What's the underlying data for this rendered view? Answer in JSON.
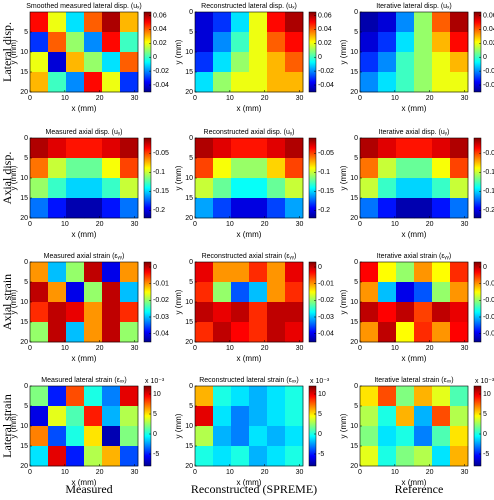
{
  "row_labels": [
    "Lateral disp.",
    "Axial disp.",
    "Axial strain",
    "Lateral strain"
  ],
  "column_labels": [
    "Measured",
    "Reconstructed (SPREME)",
    "Reference"
  ],
  "chart_data": [
    {
      "type": "heatmap",
      "title": "Smoothed measured lateral disp. (uₓ)",
      "xlabel": "x (mm)",
      "ylabel": "y (mm)",
      "xlim": [
        0,
        31
      ],
      "ylim": [
        0,
        20
      ],
      "y_reversed": true,
      "xticks": [
        0,
        10,
        20,
        30
      ],
      "yticks": [
        5,
        10,
        15,
        20
      ],
      "colormap": "jet",
      "clim": [
        -0.05,
        0.065
      ],
      "cticks": [
        0.06,
        0.04,
        0.02,
        0,
        -0.02,
        -0.04
      ],
      "values": [
        [
          0.05,
          0.02,
          -0.01,
          0.04,
          0.06,
          0.03
        ],
        [
          -0.03,
          0.04,
          0.01,
          -0.02,
          0.05,
          0.0
        ],
        [
          0.02,
          -0.04,
          0.03,
          0.01,
          -0.01,
          0.04
        ],
        [
          0.03,
          0.0,
          -0.02,
          0.05,
          0.02,
          -0.03
        ]
      ]
    },
    {
      "type": "heatmap",
      "title": "Reconstructed lateral disp. (uₓ)",
      "xlabel": "x (mm)",
      "ylabel": "y (mm)",
      "xlim": [
        0,
        31
      ],
      "ylim": [
        0,
        20
      ],
      "y_reversed": true,
      "xticks": [
        0,
        10,
        20,
        30
      ],
      "yticks": [
        0,
        5,
        10,
        15,
        20
      ],
      "colormap": "jet",
      "clim": [
        -0.05,
        0.065
      ],
      "cticks": [
        0.06,
        0.04,
        0.02,
        0,
        -0.02,
        -0.04
      ],
      "values": [
        [
          -0.04,
          -0.03,
          -0.01,
          0.02,
          0.05,
          0.06
        ],
        [
          -0.04,
          -0.02,
          0.0,
          0.02,
          0.04,
          0.05
        ],
        [
          -0.03,
          -0.01,
          0.01,
          0.02,
          0.03,
          0.04
        ],
        [
          -0.01,
          0.01,
          0.02,
          0.02,
          0.03,
          0.03
        ]
      ]
    },
    {
      "type": "heatmap",
      "title": "Iterative lateral disp. (uₓ)",
      "xlabel": "x (mm)",
      "ylabel": "y (mm)",
      "xlim": [
        0,
        31
      ],
      "ylim": [
        0,
        20
      ],
      "y_reversed": true,
      "xticks": [
        0,
        10,
        20,
        30
      ],
      "yticks": [
        0,
        5,
        10,
        15,
        20
      ],
      "colormap": "jet",
      "clim": [
        -0.05,
        0.065
      ],
      "cticks": [
        0.06,
        0.04,
        0.02,
        0,
        -0.02,
        -0.04
      ],
      "values": [
        [
          -0.045,
          -0.04,
          -0.02,
          0.01,
          0.04,
          0.06
        ],
        [
          -0.04,
          -0.03,
          -0.01,
          0.01,
          0.03,
          0.05
        ],
        [
          -0.03,
          -0.02,
          0.0,
          0.01,
          0.02,
          0.03
        ],
        [
          -0.02,
          -0.01,
          0.0,
          0.01,
          0.02,
          0.02
        ]
      ]
    },
    {
      "type": "heatmap",
      "title": "Measured axial disp. (uᵧ)",
      "xlabel": "x (mm)",
      "ylabel": "y (mm)",
      "xlim": [
        0,
        31
      ],
      "ylim": [
        0,
        20
      ],
      "y_reversed": true,
      "xticks": [
        0,
        10,
        20,
        30
      ],
      "yticks": [
        0,
        5,
        10,
        15,
        20
      ],
      "colormap": "jet",
      "clim": [
        -0.22,
        -0.01
      ],
      "cticks": [
        -0.05,
        -0.1,
        -0.15,
        -0.2
      ],
      "values": [
        [
          -0.02,
          -0.03,
          -0.04,
          -0.04,
          -0.03,
          -0.02
        ],
        [
          -0.06,
          -0.1,
          -0.12,
          -0.12,
          -0.09,
          -0.05
        ],
        [
          -0.11,
          -0.13,
          -0.15,
          -0.15,
          -0.13,
          -0.1
        ],
        [
          -0.17,
          -0.19,
          -0.21,
          -0.21,
          -0.19,
          -0.17
        ]
      ]
    },
    {
      "type": "heatmap",
      "title": "Reconstructed axial disp. (uᵧ)",
      "xlabel": "x (mm)",
      "ylabel": "y (mm)",
      "xlim": [
        0,
        31
      ],
      "ylim": [
        0,
        20
      ],
      "y_reversed": true,
      "xticks": [
        0,
        10,
        20,
        30
      ],
      "yticks": [
        0,
        5,
        10,
        15,
        20
      ],
      "colormap": "jet",
      "clim": [
        -0.22,
        -0.01
      ],
      "cticks": [
        -0.05,
        -0.1,
        -0.15,
        -0.2
      ],
      "values": [
        [
          -0.02,
          -0.03,
          -0.04,
          -0.04,
          -0.03,
          -0.02
        ],
        [
          -0.05,
          -0.09,
          -0.11,
          -0.11,
          -0.08,
          -0.05
        ],
        [
          -0.1,
          -0.12,
          -0.14,
          -0.14,
          -0.12,
          -0.1
        ],
        [
          -0.16,
          -0.18,
          -0.2,
          -0.2,
          -0.18,
          -0.16
        ]
      ]
    },
    {
      "type": "heatmap",
      "title": "Iterative axial disp. (uᵧ)",
      "xlabel": "x (mm)",
      "ylabel": "y (mm)",
      "xlim": [
        0,
        31
      ],
      "ylim": [
        0,
        20
      ],
      "y_reversed": true,
      "xticks": [
        0,
        10,
        20,
        30
      ],
      "yticks": [
        0,
        5,
        10,
        15,
        20
      ],
      "colormap": "jet",
      "clim": [
        -0.22,
        -0.01
      ],
      "cticks": [
        -0.05,
        -0.1,
        -0.15,
        -0.2
      ],
      "values": [
        [
          -0.02,
          -0.03,
          -0.04,
          -0.04,
          -0.03,
          -0.02
        ],
        [
          -0.06,
          -0.1,
          -0.12,
          -0.12,
          -0.09,
          -0.05
        ],
        [
          -0.1,
          -0.13,
          -0.15,
          -0.15,
          -0.13,
          -0.1
        ],
        [
          -0.17,
          -0.19,
          -0.21,
          -0.21,
          -0.19,
          -0.17
        ]
      ]
    },
    {
      "type": "heatmap",
      "title": "Measured axial strain (εᵧᵧ)",
      "xlabel": "x (mm)",
      "ylabel": "y (mm)",
      "xlim": [
        0,
        31
      ],
      "ylim": [
        0,
        20
      ],
      "y_reversed": true,
      "xticks": [
        0,
        10,
        20,
        30
      ],
      "yticks": [
        0,
        5,
        10,
        15,
        20
      ],
      "colormap": "jet",
      "clim": [
        -0.045,
        0.003
      ],
      "cticks": [
        0,
        -0.01,
        -0.02,
        -0.03,
        -0.04
      ],
      "values": [
        [
          -0.01,
          -0.03,
          -0.02,
          0.0,
          -0.04,
          -0.01
        ],
        [
          0.0,
          -0.01,
          -0.04,
          -0.02,
          0.0,
          -0.03
        ],
        [
          -0.005,
          0.0,
          -0.002,
          -0.01,
          0.0,
          -0.005
        ],
        [
          -0.02,
          0.0,
          -0.03,
          -0.01,
          0.0,
          -0.02
        ]
      ]
    },
    {
      "type": "heatmap",
      "title": "Reconstructed axial strain (εᵧᵧ)",
      "xlabel": "x (mm)",
      "ylabel": "y (mm)",
      "xlim": [
        0,
        31
      ],
      "ylim": [
        0,
        20
      ],
      "y_reversed": true,
      "xticks": [
        0,
        10,
        20,
        30
      ],
      "yticks": [
        0,
        5,
        10,
        15,
        20
      ],
      "colormap": "jet",
      "clim": [
        -0.045,
        0.003
      ],
      "cticks": [
        0,
        -0.01,
        -0.02,
        -0.03,
        -0.04
      ],
      "values": [
        [
          -0.002,
          -0.01,
          -0.01,
          -0.005,
          -0.01,
          -0.002
        ],
        [
          -0.005,
          -0.02,
          -0.035,
          -0.03,
          -0.01,
          -0.005
        ],
        [
          0.0,
          -0.002,
          0.0,
          -0.005,
          0.0,
          0.0
        ],
        [
          -0.005,
          0.0,
          -0.003,
          -0.005,
          0.0,
          -0.002
        ]
      ]
    },
    {
      "type": "heatmap",
      "title": "Iterative axial strain (εᵧᵧ)",
      "xlabel": "x (mm)",
      "ylabel": "y (mm)",
      "xlim": [
        0,
        31
      ],
      "ylim": [
        0,
        20
      ],
      "y_reversed": true,
      "xticks": [
        0,
        10,
        20,
        30
      ],
      "yticks": [
        0,
        5,
        10,
        15,
        20
      ],
      "colormap": "jet",
      "clim": [
        -0.045,
        0.003
      ],
      "cticks": [
        0,
        -0.01,
        -0.02,
        -0.03,
        -0.04
      ],
      "values": [
        [
          -0.003,
          -0.015,
          -0.02,
          -0.01,
          -0.015,
          -0.005
        ],
        [
          -0.01,
          -0.03,
          -0.04,
          -0.035,
          -0.02,
          -0.01
        ],
        [
          0.0,
          -0.003,
          0.0,
          -0.006,
          0.0,
          -0.002
        ],
        [
          -0.01,
          0.0,
          -0.015,
          -0.005,
          -0.01,
          -0.003
        ]
      ]
    },
    {
      "type": "heatmap",
      "title": "Measured lateral strain (εₓₓ)",
      "xlabel": "x (mm)",
      "ylabel": "y (mm)",
      "xlim": [
        0,
        31
      ],
      "ylim": [
        0,
        20
      ],
      "y_reversed": true,
      "xticks": [
        0,
        10,
        20,
        30
      ],
      "yticks": [
        0,
        5,
        10,
        15,
        20
      ],
      "colormap": "jet",
      "clim": [
        -8,
        12
      ],
      "cticks": [
        10,
        5,
        0,
        -5
      ],
      "cbar_label": "x 10⁻³",
      "values": [
        [
          2,
          -5,
          8,
          0,
          -3,
          10
        ],
        [
          -6,
          4,
          1,
          9,
          -2,
          3
        ],
        [
          7,
          -4,
          0,
          5,
          -7,
          2
        ],
        [
          -1,
          10,
          -5,
          3,
          6,
          -4
        ]
      ]
    },
    {
      "type": "heatmap",
      "title": "Reconstructed lateral strain (εₓₓ)",
      "xlabel": "x (mm)",
      "ylabel": "y (mm)",
      "xlim": [
        0,
        31
      ],
      "ylim": [
        0,
        20
      ],
      "y_reversed": true,
      "xticks": [
        0,
        10,
        20,
        30
      ],
      "yticks": [
        0,
        5,
        10,
        15,
        20
      ],
      "colormap": "jet",
      "clim": [
        -8,
        12
      ],
      "cticks": [
        10,
        5,
        0,
        -5
      ],
      "cbar_label": "x 10⁻³",
      "values": [
        [
          6,
          0,
          -1,
          -2,
          -1,
          0
        ],
        [
          10,
          -1,
          -3,
          -2,
          -1,
          0
        ],
        [
          3,
          -2,
          -3,
          -1,
          -2,
          -1
        ],
        [
          0,
          -1,
          0,
          -2,
          -1,
          0
        ]
      ]
    },
    {
      "type": "heatmap",
      "title": "Iterative lateral strain (εₓₓ)",
      "xlabel": "x (mm)",
      "ylabel": "y (mm)",
      "xlim": [
        0,
        31
      ],
      "ylim": [
        0,
        20
      ],
      "y_reversed": true,
      "xticks": [
        0,
        10,
        20,
        30
      ],
      "yticks": [
        0,
        5,
        10,
        15,
        20
      ],
      "colormap": "jet",
      "clim": [
        -8,
        12
      ],
      "cticks": [
        10,
        5,
        0,
        -5
      ],
      "cbar_label": "x 10⁻³",
      "values": [
        [
          5,
          8,
          2,
          6,
          4,
          1
        ],
        [
          3,
          0,
          6,
          -2,
          8,
          3
        ],
        [
          2,
          -1,
          0,
          -3,
          1,
          5
        ],
        [
          4,
          0,
          2,
          3,
          -1,
          6
        ]
      ]
    }
  ]
}
